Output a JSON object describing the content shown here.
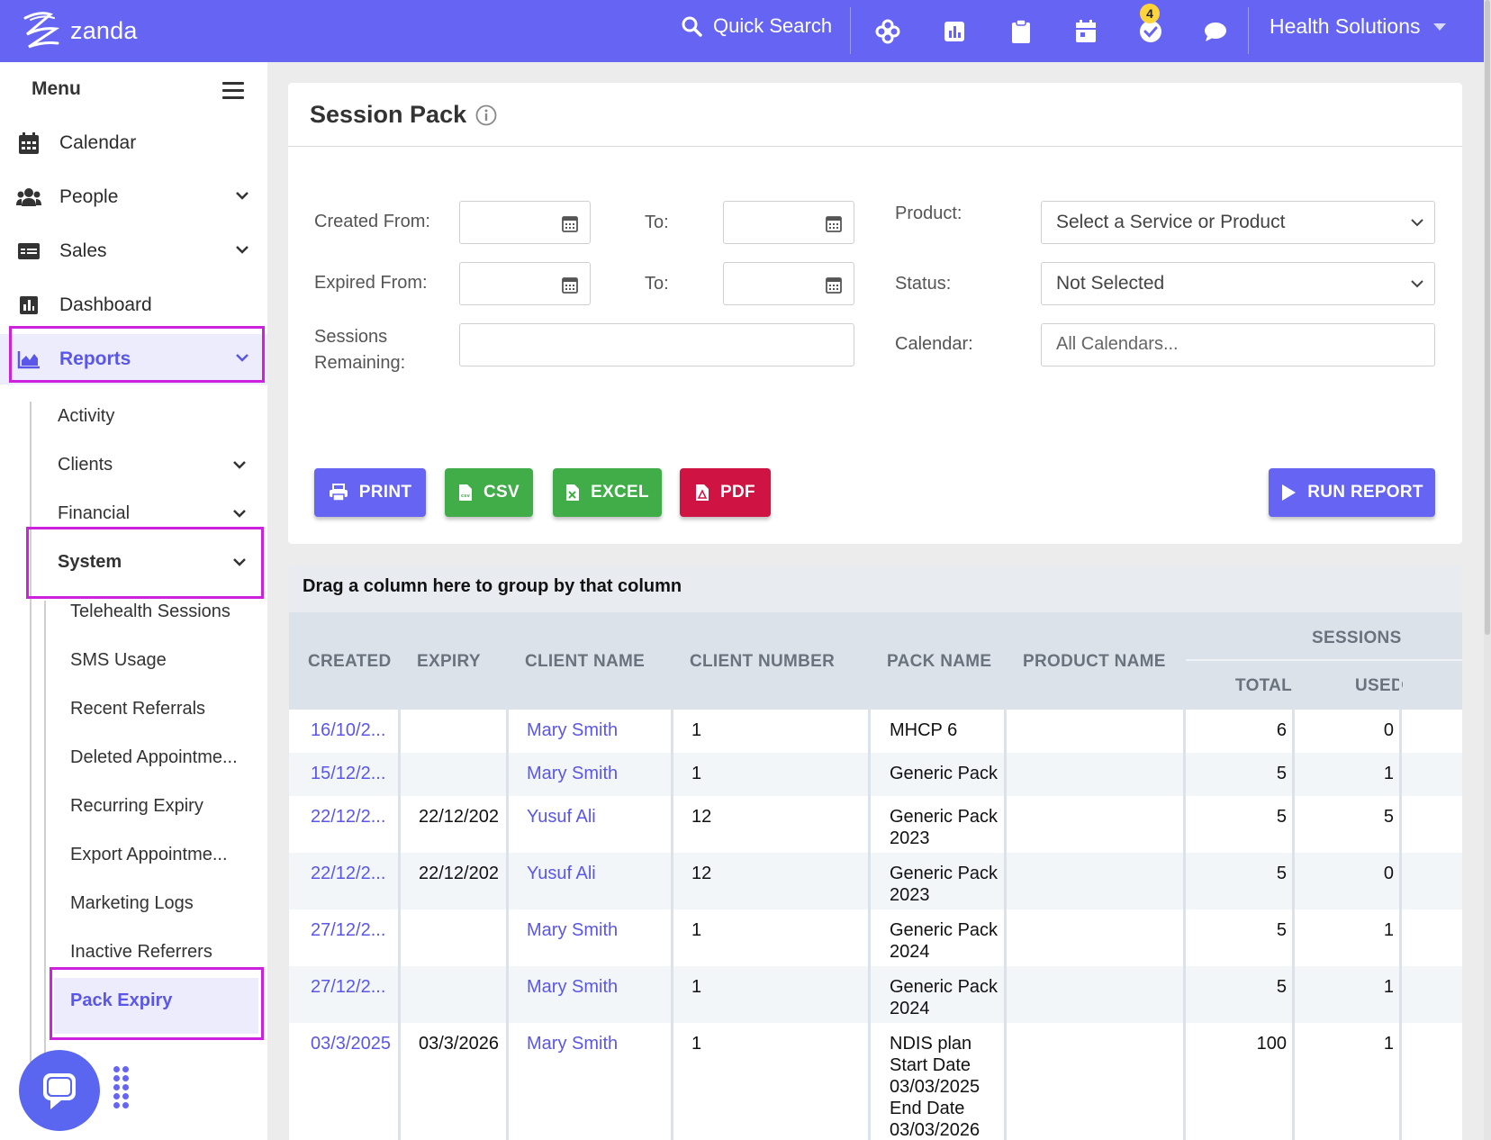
{
  "app": {
    "logo_text": "zanda",
    "quick_search": "Quick Search",
    "notification_count": "4",
    "org_name": "Health Solutions",
    "accent_color": "#6564f3"
  },
  "toolbar_icons": [
    "flower-icon",
    "chart-icon",
    "clipboard-icon",
    "calendar-icon",
    "check-circle-icon",
    "chat-bubble-icon"
  ],
  "sidebar": {
    "menu_label": "Menu",
    "items": [
      {
        "label": "Calendar",
        "icon": "calendar-icon"
      },
      {
        "label": "People",
        "icon": "people-icon"
      },
      {
        "label": "Sales",
        "icon": "sales-icon"
      },
      {
        "label": "Dashboard",
        "icon": "dashboard-icon"
      },
      {
        "label": "Reports",
        "icon": "reports-icon"
      }
    ],
    "report_items": [
      "Activity",
      "Clients",
      "Financial",
      "System"
    ],
    "system_items": [
      "Telehealth Sessions",
      "SMS Usage",
      "Recent Referrals",
      "Deleted Appointme...",
      "Recurring Expiry",
      "Export Appointme...",
      "Marketing Logs",
      "Inactive Referrers",
      "Pack Expiry"
    ]
  },
  "filters": {
    "title": "Session Pack",
    "created_from": "Created From:",
    "to": "To:",
    "expired_from": "Expired From:",
    "sessions_remaining_1": "Sessions",
    "sessions_remaining_2": "Remaining:",
    "product_label": "Product:",
    "product_value": "Select a Service or Product",
    "status_label": "Status:",
    "status_value": "Not Selected",
    "calendar_label": "Calendar:",
    "calendar_placeholder": "All Calendars..."
  },
  "buttons": {
    "print": "PRINT",
    "csv": "CSV",
    "excel": "EXCEL",
    "pdf": "PDF",
    "run": "RUN REPORT"
  },
  "grid": {
    "group_hint": "Drag a column here to group by that column",
    "headers": {
      "created": "CREATED",
      "expiry": "EXPIRY",
      "client_name": "CLIENT NAME",
      "client_number": "CLIENT NUMBER",
      "pack_name": "PACK NAME",
      "product_name": "PRODUCT NAME",
      "sessions": "SESSIONS",
      "total": "TOTAL",
      "used": "USED"
    },
    "rows": [
      {
        "created": "16/10/2...",
        "expiry": "",
        "client": "Mary Smith",
        "number": "1",
        "pack": "MHCP 6",
        "product": "",
        "total": "6",
        "used": "0"
      },
      {
        "created": "15/12/2...",
        "expiry": "",
        "client": "Mary Smith",
        "number": "1",
        "pack": "Generic Pack",
        "product": "",
        "total": "5",
        "used": "1"
      },
      {
        "created": "22/12/2...",
        "expiry": "22/12/202",
        "client": "Yusuf Ali",
        "number": "12",
        "pack": "Generic Pack 2023",
        "product": "",
        "total": "5",
        "used": "5"
      },
      {
        "created": "22/12/2...",
        "expiry": "22/12/202",
        "client": "Yusuf Ali",
        "number": "12",
        "pack": "Generic Pack 2023",
        "product": "",
        "total": "5",
        "used": "0"
      },
      {
        "created": "27/12/2...",
        "expiry": "",
        "client": "Mary Smith",
        "number": "1",
        "pack": "Generic Pack 2024",
        "product": "",
        "total": "5",
        "used": "1"
      },
      {
        "created": "27/12/2...",
        "expiry": "",
        "client": "Mary Smith",
        "number": "1",
        "pack": "Generic Pack 2024",
        "product": "",
        "total": "5",
        "used": "1"
      },
      {
        "created": "03/3/2025",
        "expiry": "03/3/2026",
        "client": "Mary Smith",
        "number": "1",
        "pack": "NDIS plan Start Date 03/03/2025 End Date 03/03/2026",
        "product": "",
        "total": "100",
        "used": "1"
      }
    ]
  }
}
